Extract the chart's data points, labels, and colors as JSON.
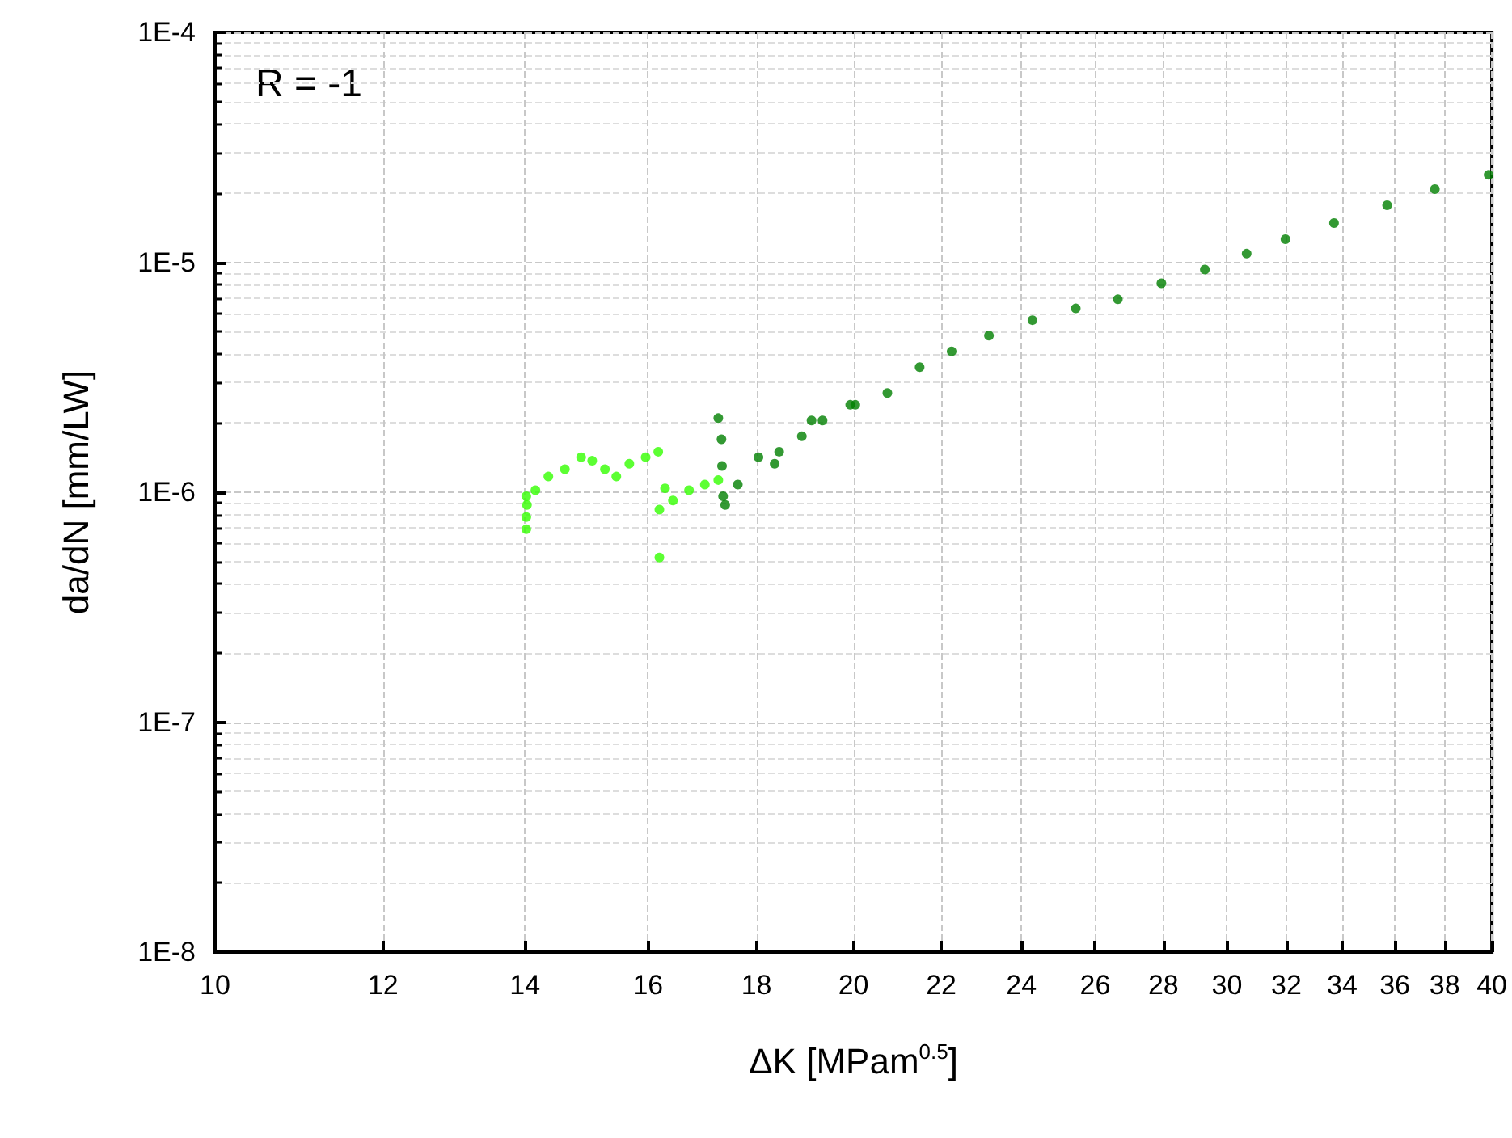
{
  "chart_data": {
    "type": "scatter",
    "xlabel": "ΔK [MPam$^{0.5}$]",
    "ylabel": "da/dN [mm/LW]",
    "annotations": [
      "R = -1"
    ],
    "log": "xy",
    "grid": true,
    "marker": "circle",
    "xlim": [
      10,
      40
    ],
    "xticks": [
      10,
      12,
      14,
      16,
      18,
      20,
      22,
      24,
      26,
      28,
      30,
      32,
      34,
      36,
      38,
      40
    ],
    "ylim": [
      1e-08,
      0.0001
    ],
    "yticks": [
      {
        "value": 1e-08,
        "label": "1E-8"
      },
      {
        "value": 1e-07,
        "label": "1E-7"
      },
      {
        "value": 1e-06,
        "label": "1E-6"
      },
      {
        "value": 1e-05,
        "label": "1E-5"
      },
      {
        "value": 0.0001,
        "label": "1E-4"
      }
    ],
    "series": [
      {
        "color": "#33ff00",
        "x": [
          14.02,
          14.02,
          14.03,
          14.02,
          14.16,
          14.36,
          14.62,
          14.88,
          15.06,
          15.27,
          15.46,
          15.68,
          15.96,
          16.18,
          16.2,
          16.2,
          16.3,
          16.44,
          16.73,
          17.02,
          17.27
        ],
        "values": [
          6.9e-07,
          7.8e-07,
          8.8e-07,
          9.6e-07,
          1.02e-06,
          1.17e-06,
          1.26e-06,
          1.42e-06,
          1.37e-06,
          1.26e-06,
          1.17e-06,
          1.33e-06,
          1.42e-06,
          1.5e-06,
          8.4e-07,
          5.2e-07,
          1.04e-06,
          9.2e-07,
          1.02e-06,
          1.08e-06,
          1.13e-06
        ]
      },
      {
        "color": "#008000",
        "x": [
          17.27,
          17.33,
          17.34,
          17.36,
          17.4,
          17.64,
          18.04,
          18.36,
          18.45,
          18.91,
          19.11,
          19.34,
          19.93,
          20.04,
          20.75,
          21.49,
          22.25,
          23.17,
          24.29,
          25.46,
          26.65,
          27.94,
          29.29,
          30.65,
          31.97,
          33.7,
          35.7,
          37.6,
          39.86
        ],
        "values": [
          2.1e-06,
          1.7e-06,
          1.3e-06,
          9.6e-07,
          8.8e-07,
          1.08e-06,
          1.42e-06,
          1.33e-06,
          1.5e-06,
          1.75e-06,
          2.05e-06,
          2.05e-06,
          2.4e-06,
          2.4e-06,
          2.7e-06,
          3.5e-06,
          4.1e-06,
          4.8e-06,
          5.6e-06,
          6.3e-06,
          6.9e-06,
          8.1e-06,
          9.3e-06,
          1.09e-05,
          1.26e-05,
          1.48e-05,
          1.77e-05,
          2.08e-05,
          2.4e-05
        ]
      }
    ]
  }
}
